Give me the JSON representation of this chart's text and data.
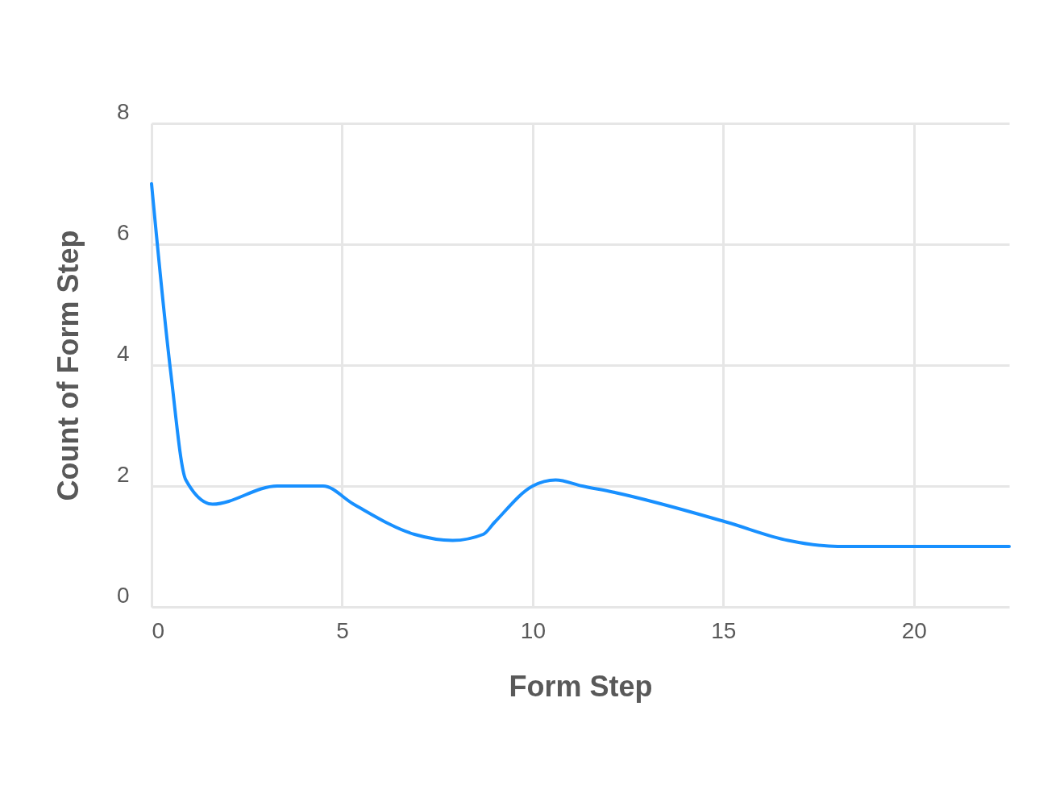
{
  "chart_data": {
    "type": "line",
    "xlabel": "Form Step",
    "ylabel": "Count of Form Step",
    "x": [
      0,
      0.5,
      0.9,
      1.6,
      3.3,
      3.9,
      4.5,
      5.3,
      6.9,
      7.9,
      8.7,
      9.0,
      10.0,
      10.6,
      11.3,
      12.1,
      15.1,
      16.7,
      18.0,
      20.0,
      22.5
    ],
    "series": [
      {
        "color": "#1890ff",
        "values": [
          7.0,
          3.9,
          2.1,
          1.7,
          2.0,
          2.0,
          2.0,
          1.7,
          1.2,
          1.1,
          1.2,
          1.4,
          2.0,
          2.1,
          2.0,
          1.9,
          1.4,
          1.1,
          1.0,
          1.0,
          1.0
        ]
      }
    ],
    "xlim": [
      0,
      22.5
    ],
    "xticks": [
      0,
      5,
      10,
      15,
      20
    ],
    "ylim": [
      0,
      8
    ],
    "yticks": [
      0,
      2,
      4,
      6,
      8
    ],
    "grid": true
  }
}
